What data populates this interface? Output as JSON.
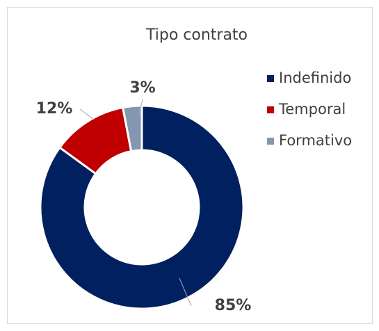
{
  "chart_data": {
    "type": "donut",
    "title": "Tipo contrato",
    "categories": [
      "Indefinido",
      "Temporal",
      "Formativo"
    ],
    "values": [
      85,
      12,
      3
    ],
    "value_labels": [
      "85%",
      "12%",
      "3%"
    ],
    "colors": [
      "#002060",
      "#c00000",
      "#8497b0"
    ],
    "legend": "right"
  }
}
